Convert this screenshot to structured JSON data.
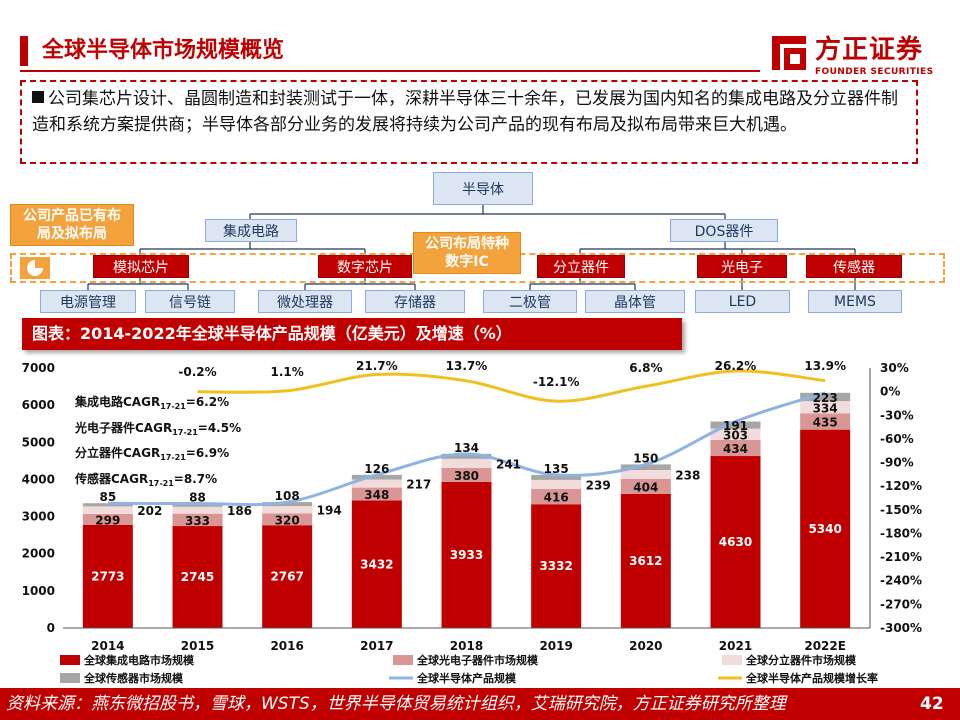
{
  "header": {
    "title": "全球半导体市场规模概览",
    "logo_cn": "方正证券",
    "logo_en": "FOUNDER SECURITIES"
  },
  "summary": {
    "text": "公司集芯片设计、晶圆制造和封装测试于一体，深耕半导体三十余年，已发展为国内知名的集成电路及分立器件制造和系统方案提供商；半导体各部分业务的发展将持续为公司产品的现有布局及拟布局带来巨大机遇。"
  },
  "diagram": {
    "root": "半导体",
    "level1": [
      "集成电路",
      "DOS器件"
    ],
    "level2": [
      "模拟芯片",
      "数字芯片",
      "分立器件",
      "光电子",
      "传感器"
    ],
    "level3": [
      "电源管理",
      "信号链",
      "微处理器",
      "存储器",
      "二极管",
      "晶体管",
      "LED",
      "MEMS"
    ],
    "tag_products": "公司产品已有布局及拟布局",
    "tag_layout": "公司布局特种数字IC"
  },
  "caption": "图表：2014-2022年全球半导体产品规模（亿美元）及增速（%）",
  "cagr_notes": [
    {
      "pre": "集成电路CAGR",
      "sub": "17-21",
      "post": "=6.2%"
    },
    {
      "pre": "光电子器件CAGR",
      "sub": "17-21",
      "post": "=4.5%"
    },
    {
      "pre": "分立器件CAGR",
      "sub": "17-21",
      "post": "=6.9%"
    },
    {
      "pre": "传感器CAGR",
      "sub": "17-21",
      "post": "=8.7%"
    }
  ],
  "chart_data": {
    "type": "bar",
    "stacked": true,
    "title": "图表：2014-2022年全球半导体产品规模（亿美元）及增速（%）",
    "categories": [
      "2014",
      "2015",
      "2016",
      "2017",
      "2018",
      "2019",
      "2020",
      "2021",
      "2022E"
    ],
    "series": [
      {
        "name": "全球集成电路市场规模",
        "color": "#c00000",
        "values": [
          2773,
          2745,
          2767,
          3432,
          3933,
          3332,
          3612,
          4630,
          5340
        ]
      },
      {
        "name": "全球光电子器件市场规模",
        "color": "#d99694",
        "values": [
          299,
          333,
          320,
          348,
          380,
          416,
          404,
          434,
          435
        ]
      },
      {
        "name": "全球分立器件市场规模",
        "color": "#f2dcdb",
        "values": [
          202,
          186,
          194,
          217,
          241,
          239,
          238,
          303,
          334
        ]
      },
      {
        "name": "全球传感器市场规模",
        "color": "#a6a6a6",
        "values": [
          85,
          88,
          108,
          126,
          134,
          135,
          150,
          191,
          223
        ]
      }
    ],
    "outside_labels": [
      "202",
      "186",
      "194",
      "217",
      "241",
      "239",
      "238",
      "",
      ""
    ],
    "line_series": [
      {
        "name": "全球半导体产品规模",
        "color": "#8db4e2",
        "axis": "left",
        "values": [
          3359,
          3352,
          3389,
          4123,
          4688,
          4122,
          4404,
          5558,
          6332
        ]
      },
      {
        "name": "全球半导体产品规模增长率",
        "color": "#f0c020",
        "axis": "right",
        "values": [
          -0.2,
          1.1,
          21.7,
          13.7,
          -12.1,
          6.8,
          26.2,
          13.9
        ],
        "labels": [
          "-0.2%",
          "1.1%",
          "21.7%",
          "13.7%",
          "-12.1%",
          "6.8%",
          "26.2%",
          "13.9%"
        ],
        "categories": [
          "2015",
          "2016",
          "2017",
          "2018",
          "2019",
          "2020",
          "2021",
          "2022E"
        ]
      }
    ],
    "ylim": [
      0,
      7000
    ],
    "yticks": [
      "0",
      "1000",
      "2000",
      "3000",
      "4000",
      "5000",
      "6000",
      "7000"
    ],
    "y2lim": [
      -300,
      30
    ],
    "y2ticks": [
      "-300%",
      "-270%",
      "-240%",
      "-210%",
      "-180%",
      "-150%",
      "-120%",
      "-90%",
      "-60%",
      "-30%",
      "0%",
      "30%"
    ],
    "legend": [
      "全球集成电路市场规模",
      "全球光电子器件市场规模",
      "全球分立器件市场规模",
      "全球传感器市场规模",
      "全球半导体产品规模",
      "全球半导体产品规模增长率"
    ],
    "legend_position": "bottom"
  },
  "footer": {
    "source": "资料来源：燕东微招股书，雪球，WSTS，世界半导体贸易统计组织，艾瑞研究院，方正证券研究所整理",
    "page": "42"
  }
}
